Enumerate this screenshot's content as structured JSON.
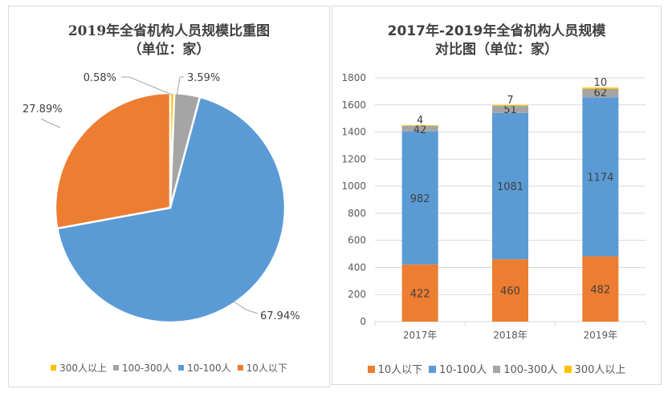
{
  "chart_data": [
    {
      "type": "pie",
      "title": "2019年全省机构人员规模比重图",
      "subtitle": "（单位：家）",
      "categories": [
        "300人以上",
        "100-300人",
        "10-100人",
        "10人以下"
      ],
      "values": [
        0.58,
        3.59,
        67.94,
        27.89
      ],
      "labels": [
        "0.58%",
        "3.59%",
        "67.94%",
        "27.89%"
      ],
      "colors": [
        "#FFC000",
        "#A5A5A5",
        "#5B9BD5",
        "#ED7D31"
      ],
      "legend": {
        "position": "bottom",
        "order": [
          "300人以上",
          "100-300人",
          "10-100人",
          "10人以下"
        ]
      }
    },
    {
      "type": "bar",
      "stacked": true,
      "title": "2017年-2019年全省机构人员规模",
      "subtitle": "对比图（单位：家）",
      "categories": [
        "2017年",
        "2018年",
        "2019年"
      ],
      "series": [
        {
          "name": "10人以下",
          "values": [
            422,
            460,
            482
          ],
          "color": "#ED7D31"
        },
        {
          "name": "10-100人",
          "values": [
            982,
            1081,
            1174
          ],
          "color": "#5B9BD5"
        },
        {
          "name": "100-300人",
          "values": [
            42,
            51,
            62
          ],
          "color": "#A5A5A5"
        },
        {
          "name": "300人以上",
          "values": [
            4,
            7,
            10
          ],
          "color": "#FFC000"
        }
      ],
      "ylim": [
        0,
        1800
      ],
      "yticks": [
        0,
        200,
        400,
        600,
        800,
        1000,
        1200,
        1400,
        1600,
        1800
      ],
      "grid": true,
      "xlabel": "",
      "ylabel": "",
      "legend": {
        "position": "bottom"
      }
    }
  ]
}
